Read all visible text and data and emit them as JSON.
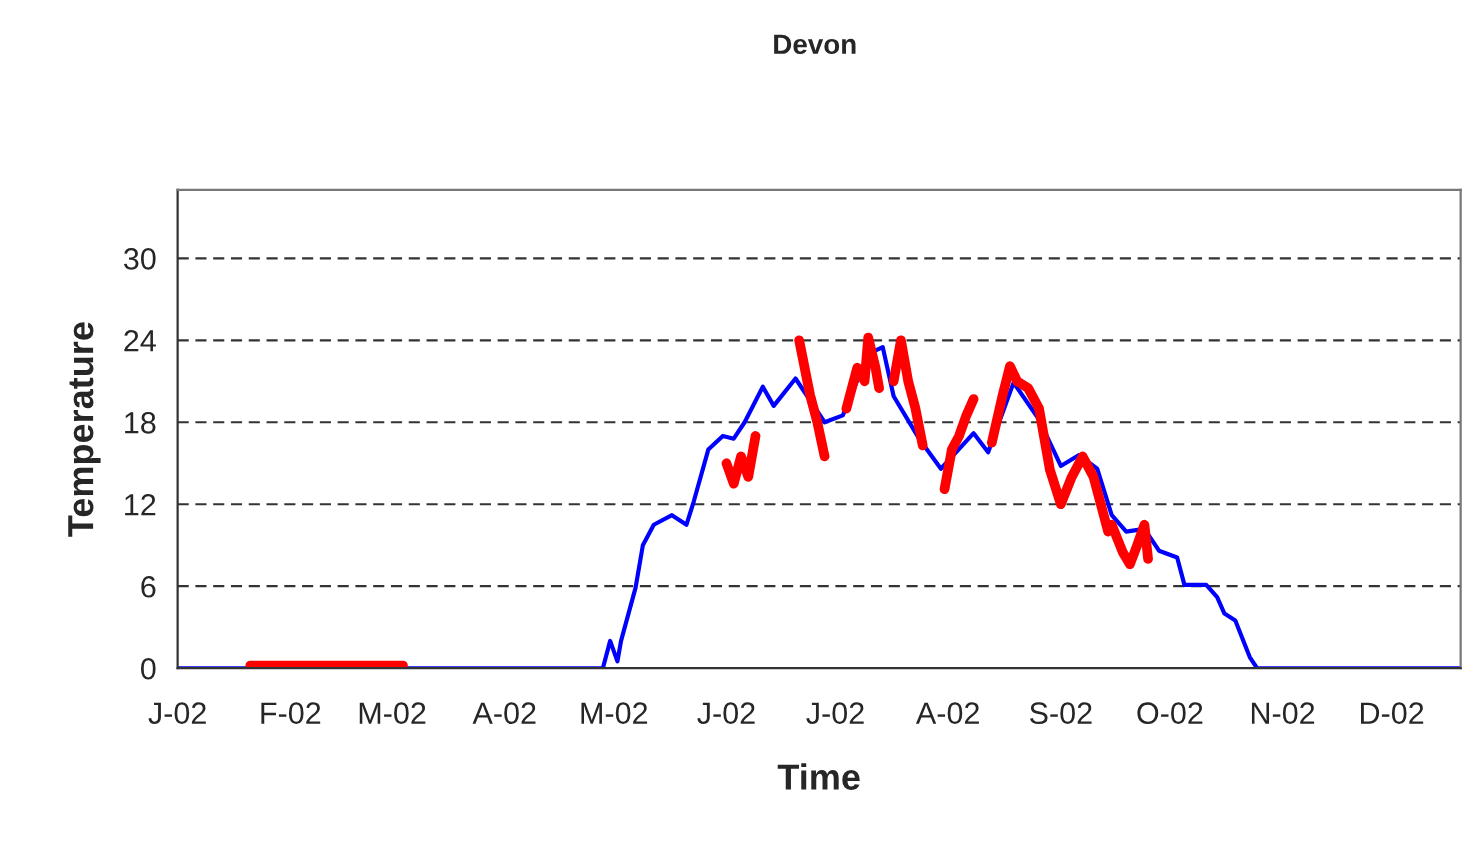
{
  "chart_data": {
    "type": "line",
    "title": "Devon",
    "xlabel": "Time",
    "ylabel": "Temperature",
    "xlim": [
      "2002-01-01",
      "2002-12-20"
    ],
    "ylim": [
      0,
      35
    ],
    "xticks": [
      {
        "value": "2002-01-01",
        "label": "J-02"
      },
      {
        "value": "2002-02-01",
        "label": "F-02"
      },
      {
        "value": "2002-03-01",
        "label": "M-02"
      },
      {
        "value": "2002-04-01",
        "label": "A-02"
      },
      {
        "value": "2002-05-01",
        "label": "M-02"
      },
      {
        "value": "2002-06-01",
        "label": "J-02"
      },
      {
        "value": "2002-07-01",
        "label": "J-02"
      },
      {
        "value": "2002-08-01",
        "label": "A-02"
      },
      {
        "value": "2002-09-01",
        "label": "S-02"
      },
      {
        "value": "2002-10-01",
        "label": "O-02"
      },
      {
        "value": "2002-11-01",
        "label": "N-02"
      },
      {
        "value": "2002-12-01",
        "label": "D-02"
      }
    ],
    "yticks": [
      0,
      6,
      12,
      18,
      24,
      30
    ],
    "grid": "y",
    "legend": false,
    "series": [
      {
        "color": "#0000ff",
        "x": [
          "2002-01-01",
          "2002-04-28",
          "2002-04-30",
          "2002-05-02",
          "2002-05-03",
          "2002-05-07",
          "2002-05-09",
          "2002-05-12",
          "2002-05-17",
          "2002-05-21",
          "2002-05-23",
          "2002-05-27",
          "2002-05-31",
          "2002-06-03",
          "2002-06-06",
          "2002-06-11",
          "2002-06-14",
          "2002-06-20",
          "2002-06-28",
          "2002-07-03",
          "2002-07-10",
          "2002-07-14",
          "2002-07-17",
          "2002-07-24",
          "2002-07-30",
          "2002-08-08",
          "2002-08-12",
          "2002-08-19",
          "2002-08-26",
          "2002-09-01",
          "2002-09-06",
          "2002-09-11",
          "2002-09-15",
          "2002-09-19",
          "2002-09-24",
          "2002-09-28",
          "2002-10-03",
          "2002-10-05",
          "2002-10-11",
          "2002-10-14",
          "2002-10-16",
          "2002-10-19",
          "2002-10-23",
          "2002-10-25",
          "2002-12-20"
        ],
        "values": [
          0,
          0,
          2,
          0.5,
          2,
          5.9,
          9,
          10.5,
          11.2,
          10.5,
          12.2,
          16,
          17,
          16.8,
          18,
          20.6,
          19.2,
          21.2,
          18,
          18.5,
          23,
          23.5,
          19.9,
          16.8,
          14.6,
          17.2,
          15.8,
          20.9,
          18.2,
          14.8,
          15.6,
          14.6,
          11.2,
          10,
          10.2,
          8.6,
          8.1,
          6.1,
          6.1,
          5.2,
          4,
          3.5,
          0.8,
          0,
          0
        ]
      },
      {
        "color": "#ff0000",
        "x": [
          "2002-01-21",
          "2002-03-04",
          "2002-03-05",
          "2002-06-01",
          "2002-06-03",
          "2002-06-05",
          "2002-06-07",
          "2002-06-09",
          "2002-06-10",
          "2002-06-21",
          "2002-06-24",
          "2002-06-26",
          "2002-06-28",
          "2002-06-30",
          "2002-07-04",
          "2002-07-07",
          "2002-07-09",
          "2002-07-10",
          "2002-07-12",
          "2002-07-13",
          "2002-07-15",
          "2002-07-17",
          "2002-07-19",
          "2002-07-21",
          "2002-07-23",
          "2002-07-25",
          "2002-07-27",
          "2002-07-31",
          "2002-08-02",
          "2002-08-04",
          "2002-08-06",
          "2002-08-08",
          "2002-08-10",
          "2002-08-13",
          "2002-08-16",
          "2002-08-18",
          "2002-08-20",
          "2002-08-23",
          "2002-08-26",
          "2002-08-29",
          "2002-09-01",
          "2002-09-04",
          "2002-09-07",
          "2002-09-10",
          "2002-09-12",
          "2002-09-14",
          "2002-09-15",
          "2002-09-18",
          "2002-09-20",
          "2002-09-22",
          "2002-09-24",
          "2002-09-25"
        ],
        "values": [
          0.2,
          0.2,
          null,
          15,
          13.5,
          15.5,
          14,
          17,
          null,
          24,
          20,
          18,
          15.5,
          null,
          19,
          22,
          21,
          24.2,
          22,
          20.5,
          null,
          21,
          24,
          21,
          19,
          16.3,
          null,
          13.1,
          16,
          17,
          18.5,
          19.7,
          null,
          16.5,
          20,
          22.1,
          21,
          20.5,
          19,
          14.5,
          12,
          14,
          15.5,
          14,
          12,
          10,
          10.5,
          8.5,
          7.6,
          9,
          10.5,
          8
        ]
      }
    ]
  }
}
